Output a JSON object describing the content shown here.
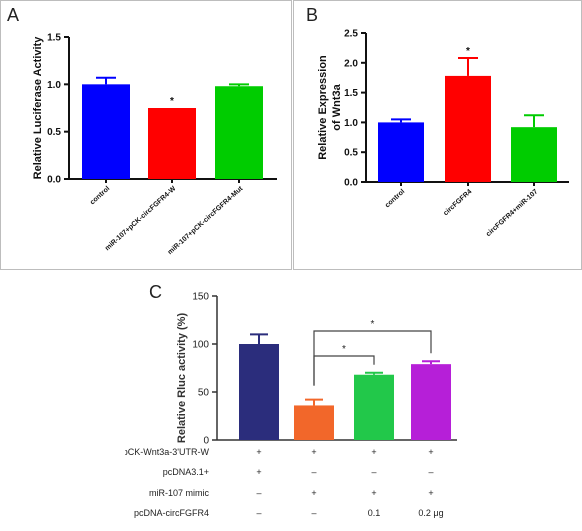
{
  "chart_data": [
    {
      "panel": "A",
      "type": "bar",
      "ylabel": "Relative Luciferase Activity",
      "ylim": [
        0.0,
        1.5
      ],
      "yticks": [
        "0.0",
        "0.5",
        "1.0",
        "1.5"
      ],
      "categories": [
        "control",
        "miR-107+pCK-circFGFR4-W",
        "miR-107+pCK-circFGFR4-Mut"
      ],
      "values": [
        1.0,
        0.75,
        0.98
      ],
      "errors": [
        0.07,
        0.0,
        0.02
      ],
      "colors": [
        "#0000ff",
        "#ff0000",
        "#00cc00"
      ],
      "annotations": [
        "",
        "*",
        ""
      ]
    },
    {
      "panel": "B",
      "type": "bar",
      "ylabel": "Relative Expression of Wnt3a",
      "ylim": [
        0.0,
        2.5
      ],
      "yticks": [
        "0.0",
        "0.5",
        "1.0",
        "1.5",
        "2.0",
        "2.5"
      ],
      "categories": [
        "control",
        "circFGFR4",
        "circFGFR4+miR-107"
      ],
      "values": [
        1.0,
        1.78,
        0.92
      ],
      "errors": [
        0.05,
        0.3,
        0.2
      ],
      "colors": [
        "#0000ff",
        "#ff0000",
        "#00cc00"
      ],
      "annotations": [
        "",
        "*",
        ""
      ]
    },
    {
      "panel": "C",
      "type": "bar",
      "ylabel": "Relative Rluc activity (%)",
      "ylim": [
        0,
        150
      ],
      "yticks": [
        "0",
        "50",
        "100",
        "150"
      ],
      "values": [
        100,
        36,
        68,
        79
      ],
      "errors": [
        10,
        6,
        2,
        3
      ],
      "colors": [
        "#2b2d7c",
        "#f2672a",
        "#22c84a",
        "#b61fd8"
      ],
      "significance": [
        {
          "from": 1,
          "to": 2,
          "label": "*"
        },
        {
          "from": 1,
          "to": 3,
          "label": "*"
        }
      ],
      "rows": [
        {
          "label": "pCK-Wnt3a-3'UTR-W",
          "cells": [
            "+",
            "+",
            "+",
            "+"
          ]
        },
        {
          "label": "pcDNA3.1+",
          "cells": [
            "+",
            "–",
            "–",
            "–"
          ]
        },
        {
          "label": "miR-107 mimic",
          "cells": [
            "–",
            "+",
            "+",
            "+"
          ]
        },
        {
          "label": "pcDNA-circFGFR4",
          "cells": [
            "–",
            "–",
            "0.1",
            "0.2 μg"
          ]
        }
      ]
    }
  ],
  "panel_letters": {
    "a": "A",
    "b": "B",
    "c": "C"
  }
}
